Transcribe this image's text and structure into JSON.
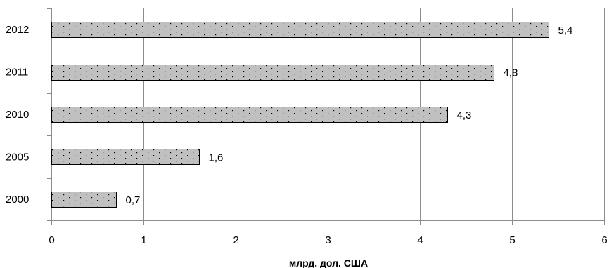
{
  "chart_data": {
    "type": "bar",
    "orientation": "horizontal",
    "categories": [
      "2012",
      "2011",
      "2010",
      "2005",
      "2000"
    ],
    "values": [
      5.4,
      4.8,
      4.3,
      1.6,
      0.7
    ],
    "value_labels": [
      "5,4",
      "4,8",
      "4,3",
      "1,6",
      "0,7"
    ],
    "x_ticks": [
      "0",
      "1",
      "2",
      "3",
      "4",
      "5",
      "6"
    ],
    "xlim": [
      0,
      6
    ],
    "title": "",
    "xlabel": "млрд. дол. США",
    "ylabel": "",
    "grid": "vertical",
    "legend": "none",
    "bar_fill": "#c0c0c0",
    "bar_dots": "#000000",
    "bar_border": "#000000",
    "grid_color": "#8c8c8c"
  }
}
